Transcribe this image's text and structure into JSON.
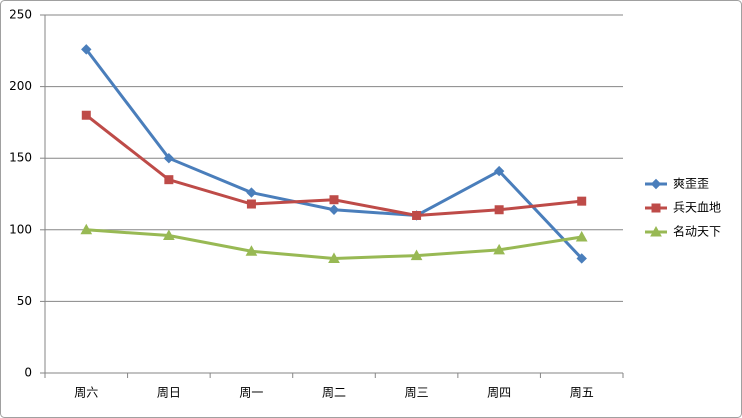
{
  "chart_data": {
    "type": "line",
    "categories": [
      "周六",
      "周日",
      "周一",
      "周二",
      "周三",
      "周四",
      "周五"
    ],
    "series": [
      {
        "name": "爽歪歪",
        "color": "#4a7ebb",
        "marker": "diamond",
        "values": [
          226,
          150,
          126,
          114,
          110,
          141,
          80
        ]
      },
      {
        "name": "兵天血地",
        "color": "#be4b48",
        "marker": "square",
        "values": [
          180,
          135,
          118,
          121,
          110,
          114,
          120
        ]
      },
      {
        "name": "名动天下",
        "color": "#98b954",
        "marker": "triangle",
        "values": [
          100,
          96,
          85,
          80,
          82,
          86,
          95
        ]
      }
    ],
    "ylim": [
      0,
      250
    ],
    "yticks": [
      0,
      50,
      100,
      150,
      200,
      250
    ],
    "grid": true,
    "legend": "right"
  }
}
